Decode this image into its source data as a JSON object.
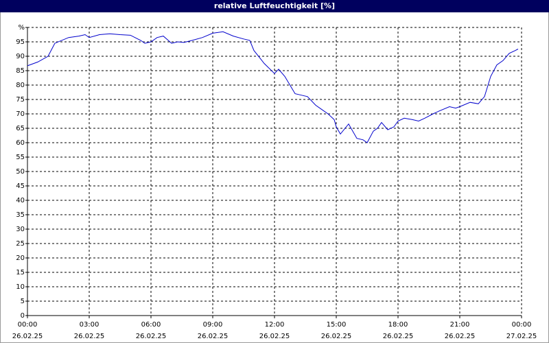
{
  "chart_data": {
    "type": "line",
    "title": "relative Luftfeuchtigkeit [%]",
    "x": [
      0,
      0.5,
      1,
      1.33,
      2,
      2.5,
      2.8,
      3,
      3.5,
      4,
      4.5,
      5,
      5.5,
      5.7,
      6,
      6.3,
      6.6,
      7,
      7.3,
      7.6,
      8,
      8.5,
      9,
      9.5,
      10,
      10.5,
      10.8,
      11,
      11.5,
      12,
      12.2,
      12.5,
      13,
      13.3,
      13.6,
      14,
      14.3,
      14.6,
      14.9,
      15,
      15.2,
      15.6,
      16,
      16.3,
      16.5,
      16.8,
      17,
      17.2,
      17.5,
      17.8,
      18,
      18.3,
      18.7,
      19,
      19.3,
      19.7,
      20,
      20.5,
      20.8,
      21,
      21.5,
      21.9,
      22.2,
      22.5,
      22.8,
      23.1,
      23.4,
      23.7,
      23.83
    ],
    "series": [
      {
        "name": "relative Luftfeuchtigkeit",
        "color": "#0000cc",
        "values": [
          86.7,
          88,
          90,
          94.5,
          96.5,
          97,
          97.5,
          96.5,
          97.5,
          97.8,
          97.5,
          97.3,
          95.5,
          94.5,
          95,
          96.5,
          97,
          94.5,
          95,
          94.8,
          95.5,
          96.5,
          98,
          98.5,
          97,
          96,
          95.5,
          92,
          87.5,
          84,
          85.5,
          83,
          77,
          76.5,
          76,
          73,
          71.5,
          70,
          68,
          65.5,
          63,
          66.5,
          61.5,
          61,
          60,
          64,
          65,
          67,
          64.5,
          65.5,
          67.5,
          68.5,
          68,
          67.5,
          68.5,
          70,
          71,
          72.5,
          72,
          72.5,
          74,
          73.5,
          76,
          83,
          87,
          88.5,
          91,
          92,
          92.5
        ]
      }
    ],
    "xlim": [
      0,
      24
    ],
    "xticks": [
      {
        "value": 0,
        "label": "00:00",
        "date": "26.02.25"
      },
      {
        "value": 3,
        "label": "03:00",
        "date": "26.02.25"
      },
      {
        "value": 6,
        "label": "06:00",
        "date": "26.02.25"
      },
      {
        "value": 9,
        "label": "09:00",
        "date": "26.02.25"
      },
      {
        "value": 12,
        "label": "12:00",
        "date": "26.02.25"
      },
      {
        "value": 15,
        "label": "15:00",
        "date": "26.02.25"
      },
      {
        "value": 18,
        "label": "18:00",
        "date": "26.02.25"
      },
      {
        "value": 21,
        "label": "21:00",
        "date": "26.02.25"
      },
      {
        "value": 24,
        "label": "00:00",
        "date": "27.02.25"
      }
    ],
    "ylim": [
      0,
      100
    ],
    "yticks": [
      0,
      5,
      10,
      15,
      20,
      25,
      30,
      35,
      40,
      45,
      50,
      55,
      60,
      65,
      70,
      75,
      80,
      85,
      90,
      95,
      {
        "value": 100,
        "label": "%"
      }
    ],
    "grid": true
  }
}
